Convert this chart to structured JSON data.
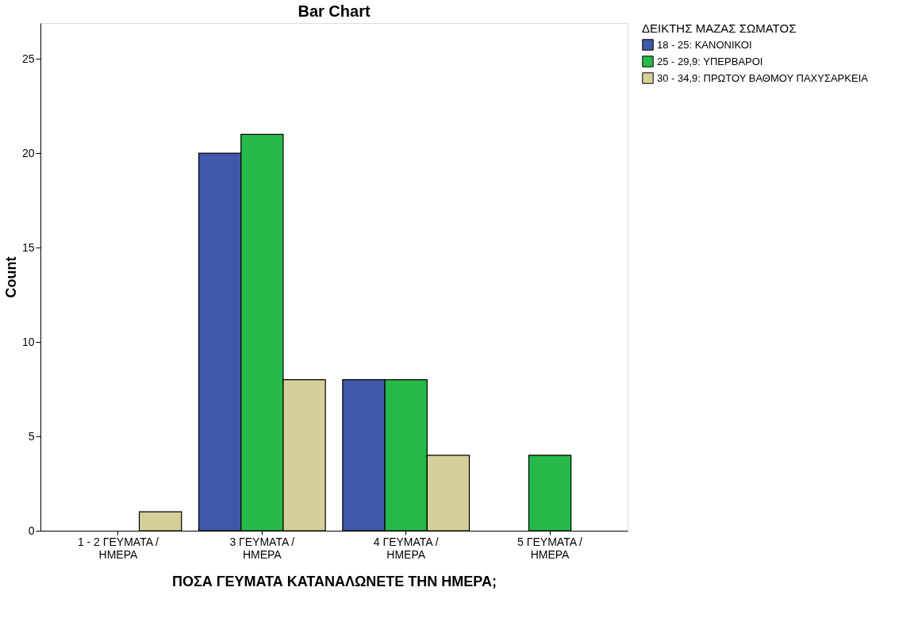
{
  "chart_data": {
    "type": "bar",
    "title": "Bar Chart",
    "xlabel": "ΠΟΣΑ ΓΕΥΜΑΤΑ ΚΑΤΑΝΑΛΩΝΕΤΕ ΤΗΝ ΗΜΕΡΑ;",
    "ylabel": "Count",
    "legend_title": "ΔΕΙΚΤΗΣ ΜΑΖΑΣ ΣΩΜΑΤΟΣ",
    "categories": [
      "1 - 2  ΓΕΥΜΑΤΑ / ΗΜΕΡΑ",
      "3 ΓΕΥΜΑΤΑ / ΗΜΕΡΑ",
      "4  ΓΕΥΜΑΤΑ / ΗΜΕΡΑ",
      "5 ΓΕΥΜΑΤΑ / ΗΜΕΡΑ"
    ],
    "series": [
      {
        "name": "18 - 25: ΚΑΝΟΝΙΚΟΙ",
        "color": "#3f58a8",
        "values": [
          null,
          20,
          8,
          null
        ]
      },
      {
        "name": "25 - 29,9: ΥΠΕΡΒΑΡΟΙ",
        "color": "#26b94a",
        "values": [
          null,
          21,
          8,
          4
        ]
      },
      {
        "name": "30 - 34,9: ΠΡΩΤΟΥ ΒΑΘΜΟΥ ΠΑΧΥΣΑΡΚΕΙΑ",
        "color": "#d5d09a",
        "values": [
          1,
          8,
          4,
          null
        ]
      }
    ],
    "ylim": [
      0,
      26.9
    ],
    "yticks": [
      0,
      5,
      10,
      15,
      20,
      25
    ],
    "grid": false,
    "legend": "top right"
  }
}
